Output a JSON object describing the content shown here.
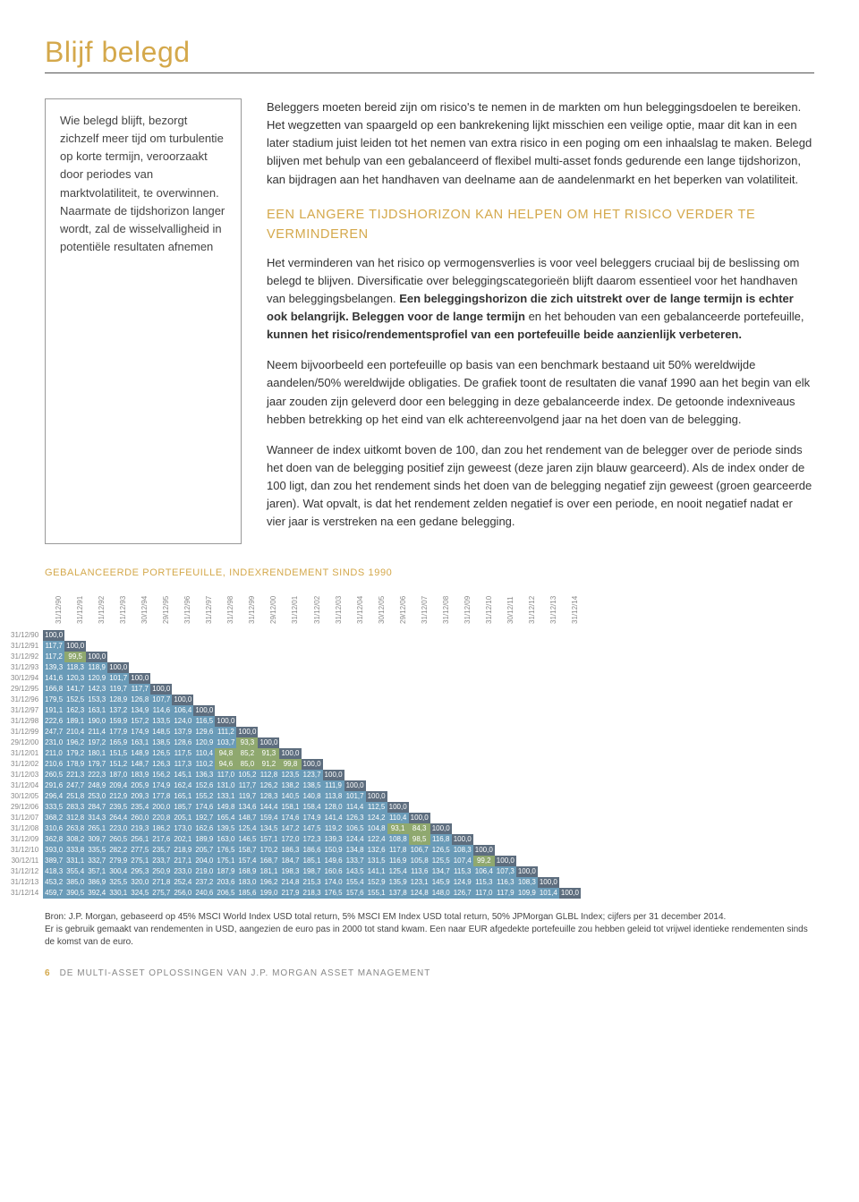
{
  "title": "Blijf belegd",
  "sidebar_text": "Wie belegd blijft, bezorgt zichzelf meer tijd om turbulentie op korte termijn, veroorzaakt door periodes van marktvolatiliteit, te overwinnen. Naarmate de tijdshorizon langer wordt, zal de wisselvalligheid in potentiële resultaten afnemen",
  "para1": "Beleggers moeten bereid zijn om risico's te nemen in de markten om hun beleggingsdoelen te bereiken. Het wegzetten van spaargeld op een bankrekening lijkt misschien een veilige optie, maar dit kan in een later stadium juist leiden tot het nemen van extra risico in een poging om een inhaalslag te maken. Belegd blijven met behulp van een gebalanceerd of flexibel multi-asset fonds gedurende een lange tijdshorizon, kan bijdragen aan het handhaven van deelname aan de aandelenmarkt en het beperken van volatiliteit.",
  "subheading": "EEN LANGERE TIJDSHORIZON KAN HELPEN OM HET RISICO VERDER TE VERMINDEREN",
  "para2a": "Het verminderen van het risico op vermogensverlies is voor veel beleggers cruciaal bij de beslissing om belegd te blijven. Diversificatie over beleggingscategorieën blijft daarom essentieel voor het handhaven van beleggingsbelangen. ",
  "para2b": "Een beleggingshorizon die zich uitstrekt over de lange termijn is echter ook belangrijk. Beleggen voor de lange termijn",
  "para2c": " en het behouden van een gebalanceerde portefeuille, ",
  "para2d": "kunnen het risico/rendementsprofiel van een portefeuille beide aanzienlijk verbeteren.",
  "para3": "Neem bijvoorbeeld een portefeuille op basis van een benchmark bestaand uit 50% wereldwijde aandelen/50% wereldwijde obligaties. De grafiek toont de resultaten die vanaf 1990 aan het begin van elk jaar zouden zijn geleverd door een belegging in deze gebalanceerde index. De getoonde indexniveaus hebben betrekking op het eind van elk achtereenvolgend jaar na het doen van de belegging.",
  "para4": "Wanneer de index uitkomt boven de 100, dan zou het rendement van de belegger over de periode sinds het doen van de belegging positief zijn geweest (deze jaren zijn blauw gearceerd). Als de index onder de 100 ligt, dan zou het rendement sinds het doen van de belegging negatief zijn geweest (groen gearceerde jaren). Wat opvalt, is dat het rendement zelden negatief is over een periode, en nooit negatief nadat er vier jaar is verstreken na een gedane belegging.",
  "table_title": "GEBALANCEERDE PORTEFEUILLE, INDEXRENDEMENT SINDS 1990",
  "dates": [
    "31/12/90",
    "31/12/91",
    "31/12/92",
    "31/12/93",
    "30/12/94",
    "29/12/95",
    "31/12/96",
    "31/12/97",
    "31/12/98",
    "31/12/99",
    "29/12/00",
    "31/12/01",
    "31/12/02",
    "31/12/03",
    "31/12/04",
    "30/12/05",
    "29/12/06",
    "31/12/07",
    "31/12/08",
    "31/12/09",
    "31/12/10",
    "30/12/11",
    "31/12/12",
    "31/12/13",
    "31/12/14"
  ],
  "rows": [
    [
      "100,0"
    ],
    [
      "117,7",
      "100,0"
    ],
    [
      "117,2",
      "99,5",
      "100,0"
    ],
    [
      "139,3",
      "118,3",
      "118,9",
      "100,0"
    ],
    [
      "141,6",
      "120,3",
      "120,9",
      "101,7",
      "100,0"
    ],
    [
      "166,8",
      "141,7",
      "142,3",
      "119,7",
      "117,7",
      "100,0"
    ],
    [
      "179,5",
      "152,5",
      "153,3",
      "128,9",
      "126,8",
      "107,7",
      "100,0"
    ],
    [
      "191,1",
      "162,3",
      "163,1",
      "137,2",
      "134,9",
      "114,6",
      "106,4",
      "100,0"
    ],
    [
      "222,6",
      "189,1",
      "190,0",
      "159,9",
      "157,2",
      "133,5",
      "124,0",
      "116,5",
      "100,0"
    ],
    [
      "247,7",
      "210,4",
      "211,4",
      "177,9",
      "174,9",
      "148,5",
      "137,9",
      "129,6",
      "111,2",
      "100,0"
    ],
    [
      "231,0",
      "196,2",
      "197,2",
      "165,9",
      "163,1",
      "138,5",
      "128,6",
      "120,9",
      "103,7",
      "93,3",
      "100,0"
    ],
    [
      "211,0",
      "179,2",
      "180,1",
      "151,5",
      "148,9",
      "126,5",
      "117,5",
      "110,4",
      "94,8",
      "85,2",
      "91,3",
      "100,0"
    ],
    [
      "210,6",
      "178,9",
      "179,7",
      "151,2",
      "148,7",
      "126,3",
      "117,3",
      "110,2",
      "94,6",
      "85,0",
      "91,2",
      "99,8",
      "100,0"
    ],
    [
      "260,5",
      "221,3",
      "222,3",
      "187,0",
      "183,9",
      "156,2",
      "145,1",
      "136,3",
      "117,0",
      "105,2",
      "112,8",
      "123,5",
      "123,7",
      "100,0"
    ],
    [
      "291,6",
      "247,7",
      "248,9",
      "209,4",
      "205,9",
      "174,9",
      "162,4",
      "152,6",
      "131,0",
      "117,7",
      "126,2",
      "138,2",
      "138,5",
      "111,9",
      "100,0"
    ],
    [
      "296,4",
      "251,8",
      "253,0",
      "212,9",
      "209,3",
      "177,8",
      "165,1",
      "155,2",
      "133,1",
      "119,7",
      "128,3",
      "140,5",
      "140,8",
      "113,8",
      "101,7",
      "100,0"
    ],
    [
      "333,5",
      "283,3",
      "284,7",
      "239,5",
      "235,4",
      "200,0",
      "185,7",
      "174,6",
      "149,8",
      "134,6",
      "144,4",
      "158,1",
      "158,4",
      "128,0",
      "114,4",
      "112,5",
      "100,0"
    ],
    [
      "368,2",
      "312,8",
      "314,3",
      "264,4",
      "260,0",
      "220,8",
      "205,1",
      "192,7",
      "165,4",
      "148,7",
      "159,4",
      "174,6",
      "174,9",
      "141,4",
      "126,3",
      "124,2",
      "110,4",
      "100,0"
    ],
    [
      "310,6",
      "263,8",
      "265,1",
      "223,0",
      "219,3",
      "186,2",
      "173,0",
      "162,6",
      "139,5",
      "125,4",
      "134,5",
      "147,2",
      "147,5",
      "119,2",
      "106,5",
      "104,8",
      "93,1",
      "84,3",
      "100,0"
    ],
    [
      "362,8",
      "308,2",
      "309,7",
      "260,5",
      "256,1",
      "217,6",
      "202,1",
      "189,9",
      "163,0",
      "146,5",
      "157,1",
      "172,0",
      "172,3",
      "139,3",
      "124,4",
      "122,4",
      "108,8",
      "98,5",
      "116,8",
      "100,0"
    ],
    [
      "393,0",
      "333,8",
      "335,5",
      "282,2",
      "277,5",
      "235,7",
      "218,9",
      "205,7",
      "176,5",
      "158,7",
      "170,2",
      "186,3",
      "186,6",
      "150,9",
      "134,8",
      "132,6",
      "117,8",
      "106,7",
      "126,5",
      "108,3",
      "100,0"
    ],
    [
      "389,7",
      "331,1",
      "332,7",
      "279,9",
      "275,1",
      "233,7",
      "217,1",
      "204,0",
      "175,1",
      "157,4",
      "168,7",
      "184,7",
      "185,1",
      "149,6",
      "133,7",
      "131,5",
      "116,9",
      "105,8",
      "125,5",
      "107,4",
      "99,2",
      "100,0"
    ],
    [
      "418,3",
      "355,4",
      "357,1",
      "300,4",
      "295,3",
      "250,9",
      "233,0",
      "219,0",
      "187,9",
      "168,9",
      "181,1",
      "198,3",
      "198,7",
      "160,6",
      "143,5",
      "141,1",
      "125,4",
      "113,6",
      "134,7",
      "115,3",
      "106,4",
      "107,3",
      "100,0"
    ],
    [
      "453,2",
      "385,0",
      "386,9",
      "325,5",
      "320,0",
      "271,8",
      "252,4",
      "237,2",
      "203,6",
      "183,0",
      "196,2",
      "214,8",
      "215,3",
      "174,0",
      "155,4",
      "152,9",
      "135,9",
      "123,1",
      "145,9",
      "124,9",
      "115,3",
      "116,3",
      "108,3",
      "100,0"
    ],
    [
      "459,7",
      "390,5",
      "392,4",
      "330,1",
      "324,5",
      "275,7",
      "256,0",
      "240,6",
      "206,5",
      "185,6",
      "199,0",
      "217,9",
      "218,3",
      "176,5",
      "157,6",
      "155,1",
      "137,8",
      "124,8",
      "148,0",
      "126,7",
      "117,0",
      "117,9",
      "109,9",
      "101,4",
      "100,0"
    ]
  ],
  "source1": "Bron: J.P. Morgan, gebaseerd op 45% MSCI World Index USD total return, 5% MSCI EM Index USD total return, 50% JPMorgan GLBL Index; cijfers per 31 december 2014.",
  "source2": "Er is gebruik gemaakt van rendementen in USD, aangezien de euro pas in 2000 tot stand kwam. Een naar EUR afgedekte portefeuille zou hebben geleid tot vrijwel identieke rendementen sinds de komst van de euro.",
  "footer_page": "6",
  "footer_text": "DE MULTI-ASSET OPLOSSINGEN VAN J.P. MORGAN ASSET MANAGEMENT"
}
